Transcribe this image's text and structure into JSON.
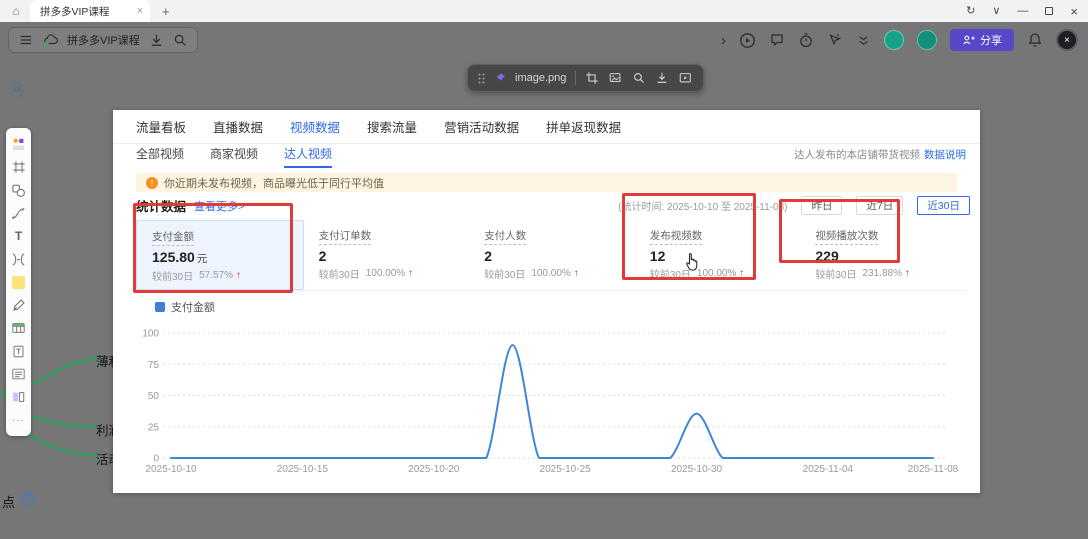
{
  "browser": {
    "tab_title": "拼多多VIP课程",
    "new_tab": "+",
    "tab_close": "×",
    "doc_title": "拼多多VIP课程",
    "share_label": "分享"
  },
  "canvas": {
    "top_badge": "68",
    "bottom_label": "点",
    "bottom_badge": "27",
    "image_name": "image.png",
    "mindmap_labels": [
      "薄利多销",
      "利润为主",
      "活动玩法"
    ]
  },
  "dashboard": {
    "tabs": [
      "流量看板",
      "直播数据",
      "视频数据",
      "搜索流量",
      "营销活动数据",
      "拼单返现数据"
    ],
    "active_tab": "视频数据",
    "subtabs": [
      "全部视频",
      "商家视频",
      "达人视频"
    ],
    "active_subtab": "达人视频",
    "note_text": "达人发布的本店铺带货视频",
    "note_link": "数据说明",
    "notice": "你近期未发布视频，商品曝光低于同行平均值",
    "notice_icon": "!",
    "stats_title": "统计数据",
    "stats_more": "查看更多>",
    "time_range": "(统计时间: 2025-10-10 至 2025-11-08)",
    "range_buttons": [
      "昨日",
      "近7日",
      "近30日"
    ],
    "active_range": "近30日",
    "cards": [
      {
        "label": "支付金额",
        "value": "125.80",
        "unit": "元",
        "compare_label": "较前30日",
        "change": "57.57%",
        "direction": "up",
        "selected": true
      },
      {
        "label": "支付订单数",
        "value": "2",
        "unit": "",
        "compare_label": "较前30日",
        "change": "100.00%",
        "direction": "up",
        "selected": false
      },
      {
        "label": "支付人数",
        "value": "2",
        "unit": "",
        "compare_label": "较前30日",
        "change": "100.00%",
        "direction": "up",
        "selected": false
      },
      {
        "label": "发布视频数",
        "value": "12",
        "unit": "",
        "compare_label": "较前30日",
        "change": "100.00%",
        "direction": "up",
        "selected": false
      },
      {
        "label": "视频播放次数",
        "value": "229",
        "unit": "",
        "compare_label": "较前30日",
        "change": "231.88%",
        "direction": "up",
        "selected": false
      }
    ],
    "legend_label": "支付金额",
    "chart_data": {
      "type": "line",
      "title": "",
      "xlabel": "",
      "ylabel": "",
      "x": [
        "2025-10-10",
        "2025-10-11",
        "2025-10-12",
        "2025-10-13",
        "2025-10-14",
        "2025-10-15",
        "2025-10-16",
        "2025-10-17",
        "2025-10-18",
        "2025-10-19",
        "2025-10-20",
        "2025-10-21",
        "2025-10-22",
        "2025-10-23",
        "2025-10-24",
        "2025-10-25",
        "2025-10-26",
        "2025-10-27",
        "2025-10-28",
        "2025-10-29",
        "2025-10-30",
        "2025-10-31",
        "2025-11-01",
        "2025-11-02",
        "2025-11-03",
        "2025-11-04",
        "2025-11-05",
        "2025-11-06",
        "2025-11-07",
        "2025-11-08"
      ],
      "series": [
        {
          "name": "支付金额",
          "values": [
            0,
            0,
            0,
            0,
            0,
            0,
            0,
            0,
            0,
            0,
            0,
            0,
            0,
            90.3,
            0,
            0,
            0,
            0,
            0,
            0,
            35.5,
            0,
            0,
            0,
            0,
            0,
            0,
            0,
            0,
            0
          ]
        }
      ],
      "xtick_labels": [
        "2025-10-10",
        "2025-10-15",
        "2025-10-20",
        "2025-10-25",
        "2025-10-30",
        "2025-11-04",
        "2025-11-08"
      ],
      "yticks": [
        0,
        25,
        50,
        75,
        100
      ],
      "ylim": [
        0,
        100
      ],
      "grid": true,
      "legend_position": "top-left",
      "line_color": "#3d87d6"
    },
    "colors": {
      "accent": "#2e6be5",
      "warning_bg": "#fdf5e2",
      "warning_icon": "#f78f1e",
      "up_red": "#e02020",
      "annotation_red": "#e23a37",
      "selected_card_bg": "#edf4fe"
    }
  },
  "icon_names": [
    "home-icon",
    "refresh-icon",
    "window-menu-icon",
    "minimize-icon",
    "maximize-icon",
    "close-icon",
    "menu-icon",
    "cloud-sync-icon",
    "download-icon",
    "search-icon",
    "expand-right-icon",
    "present-icon",
    "comment-icon",
    "timer-icon",
    "laser-pointer-icon",
    "collapse-toolbar-icon",
    "share-icon",
    "notifications-icon",
    "profile-close-icon",
    "drag-handle-icon",
    "pin-icon",
    "crop-icon",
    "replace-image-icon",
    "zoom-image-icon",
    "download-image-icon",
    "open-panel-icon",
    "templates-icon",
    "frame-icon",
    "shapes-icon",
    "connector-icon",
    "text-icon",
    "mindmap-icon",
    "sticky-note-icon",
    "pen-icon",
    "table-icon",
    "document-icon",
    "list-icon",
    "columns-icon",
    "more-icon",
    "warning-icon",
    "hand-cursor-icon"
  ]
}
